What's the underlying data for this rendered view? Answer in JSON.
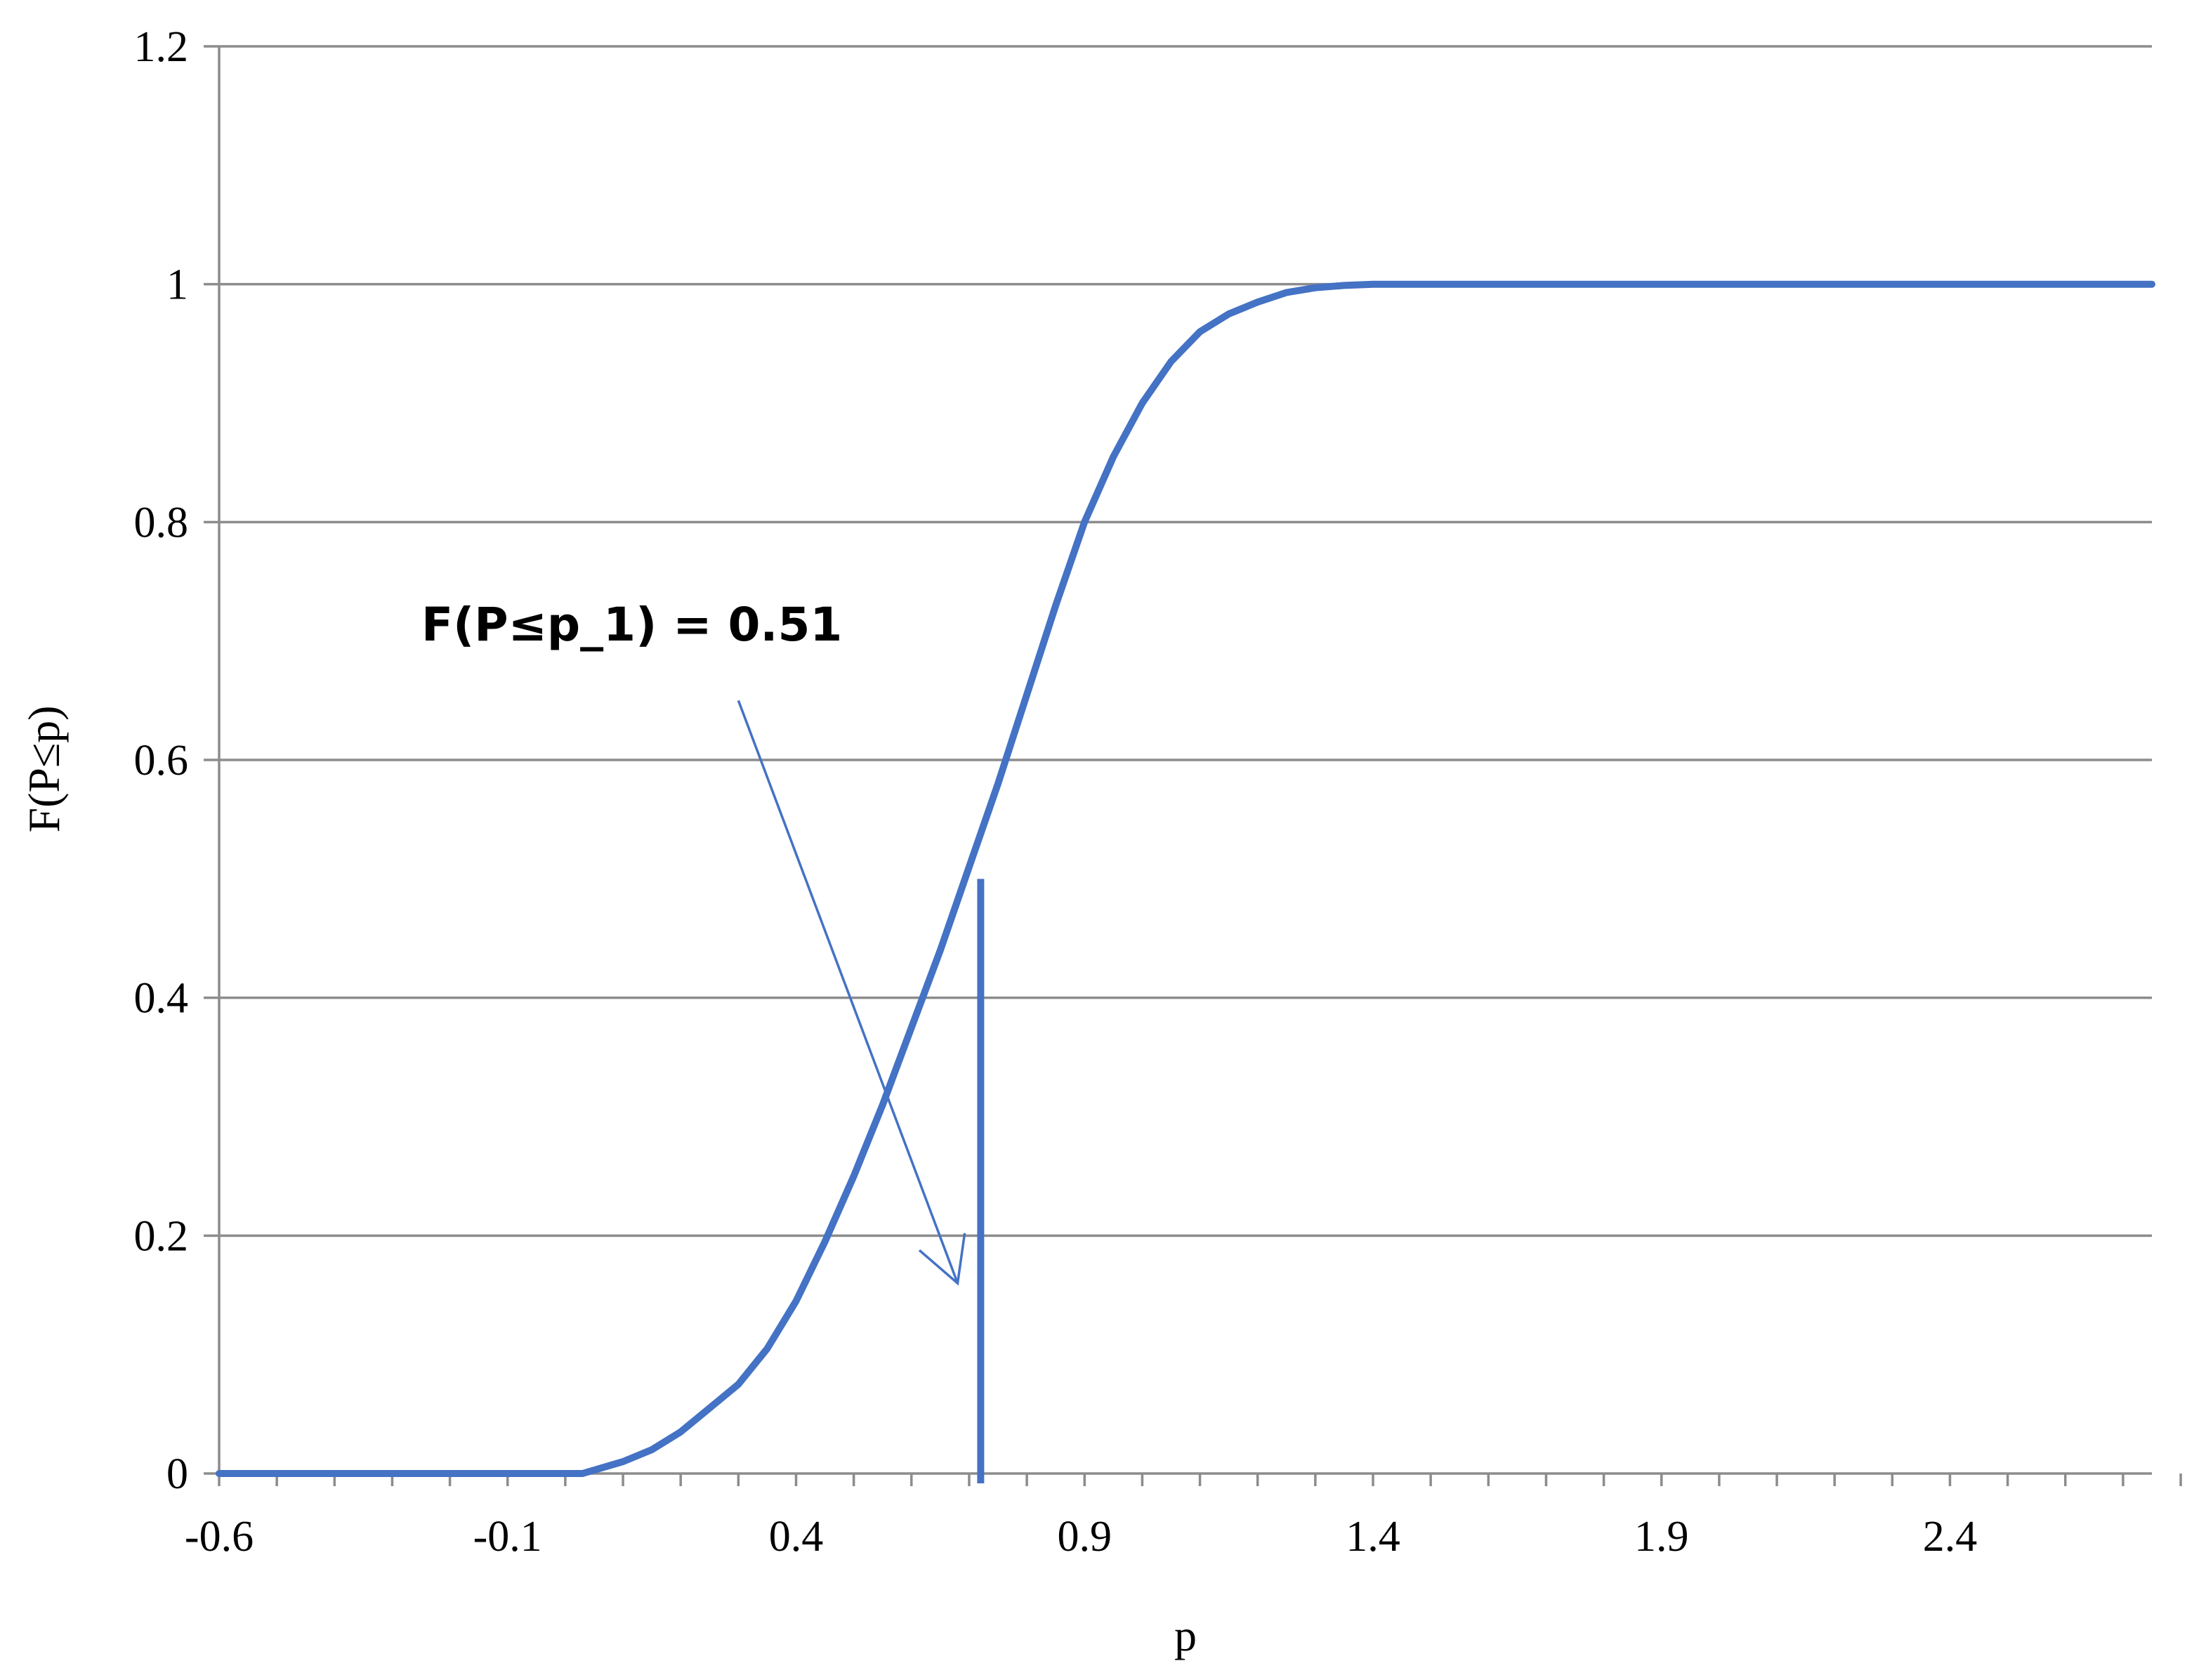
{
  "chart_data": {
    "type": "line",
    "title": "",
    "xlabel": "p",
    "ylabel": "F(P≤p)",
    "xlim": [
      -0.6,
      2.75
    ],
    "ylim": [
      0,
      1.2
    ],
    "x_ticks": [
      -0.6,
      -0.1,
      0.4,
      0.9,
      1.4,
      1.9,
      2.4
    ],
    "x_tick_labels": [
      "-0.6",
      "-0.1",
      "0.4",
      "0.9",
      "1.4",
      "1.9",
      "2.4"
    ],
    "x_minor_step": 0.1,
    "y_ticks": [
      0,
      0.2,
      0.4,
      0.6,
      0.8,
      1.0,
      1.2
    ],
    "y_tick_labels": [
      "0",
      "0.2",
      "0.4",
      "0.6",
      "0.8",
      "1",
      "1.2"
    ],
    "grid": {
      "horizontal": true,
      "vertical": false
    },
    "legend": "none",
    "series": [
      {
        "color": "#4472C4",
        "x": [
          -0.6,
          -0.1,
          0.03,
          0.1,
          0.15,
          0.2,
          0.25,
          0.3,
          0.35,
          0.4,
          0.45,
          0.5,
          0.55,
          0.6,
          0.65,
          0.7,
          0.75,
          0.8,
          0.85,
          0.9,
          0.95,
          1.0,
          1.05,
          1.1,
          1.15,
          1.2,
          1.25,
          1.3,
          1.35,
          1.4,
          1.5,
          1.6,
          1.75,
          2.0,
          2.75
        ],
        "y": [
          0.0,
          0.0,
          0.0,
          0.01,
          0.02,
          0.035,
          0.055,
          0.075,
          0.105,
          0.145,
          0.195,
          0.25,
          0.31,
          0.375,
          0.44,
          0.51,
          0.58,
          0.655,
          0.73,
          0.8,
          0.855,
          0.9,
          0.935,
          0.96,
          0.975,
          0.985,
          0.993,
          0.997,
          0.999,
          1.0,
          1.0,
          1.0,
          1.0,
          1.0,
          1.0
        ]
      }
    ],
    "marker_line": {
      "x": 0.72,
      "y_from": 0,
      "y_to": 0.5,
      "color": "#4472C4"
    },
    "annotation": {
      "text": "F(P≤p_1) = 0.51",
      "arrow_from": [
        0.3,
        0.65
      ],
      "arrow_to": [
        0.68,
        0.16
      ]
    }
  }
}
